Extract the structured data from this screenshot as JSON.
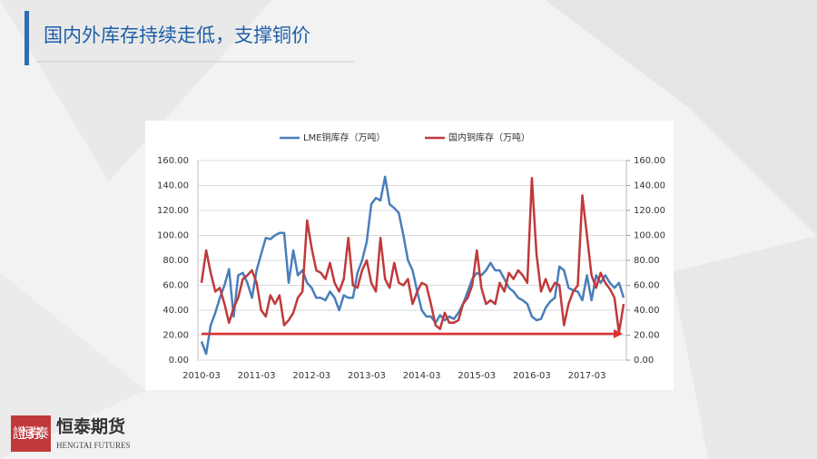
{
  "page_title": "国内外库存持续走低，支撑铜价",
  "logo": {
    "name": "恒泰期货",
    "english": "HENGTAI FUTURES",
    "seal": "證恒券泰"
  },
  "chart_data": {
    "type": "line",
    "categories": [
      "2010-03",
      null,
      null,
      null,
      null,
      null,
      null,
      null,
      null,
      null,
      null,
      null,
      "2011-03",
      null,
      null,
      null,
      null,
      null,
      null,
      null,
      null,
      null,
      null,
      null,
      "2012-03",
      null,
      null,
      null,
      null,
      null,
      null,
      null,
      null,
      null,
      null,
      null,
      "2013-03",
      null,
      null,
      null,
      null,
      null,
      null,
      null,
      null,
      null,
      null,
      null,
      "2014-03",
      null,
      null,
      null,
      null,
      null,
      null,
      null,
      null,
      null,
      null,
      null,
      "2015-03",
      null,
      null,
      null,
      null,
      null,
      null,
      null,
      null,
      null,
      null,
      null,
      "2016-03",
      null,
      null,
      null,
      null,
      null,
      null,
      null,
      null,
      null,
      null,
      null,
      "2017-03",
      null,
      null,
      null,
      null,
      null,
      null,
      null,
      null
    ],
    "series": [
      {
        "name": "LME铜库存（万吨）",
        "color": "#4a7ebb",
        "values": [
          15,
          5,
          28,
          38,
          50,
          60,
          73,
          35,
          68,
          70,
          62,
          50,
          72,
          85,
          98,
          97,
          100,
          102,
          102,
          62,
          88,
          68,
          72,
          62,
          58,
          50,
          50,
          48,
          55,
          50,
          40,
          52,
          50,
          50,
          70,
          80,
          95,
          125,
          130,
          128,
          147,
          125,
          122,
          118,
          100,
          80,
          72,
          55,
          40,
          35,
          35,
          30,
          36,
          32,
          35,
          33,
          38,
          45,
          55,
          65,
          70,
          68,
          72,
          78,
          72,
          72,
          65,
          58,
          55,
          50,
          48,
          45,
          35,
          32,
          33,
          42,
          47,
          50,
          75,
          72,
          58,
          56,
          55,
          48,
          68,
          48,
          68,
          62,
          68,
          62,
          58,
          62,
          50
        ]
      },
      {
        "name": "国内铜库存（万吨）",
        "color": "#c0393b",
        "values": [
          62,
          88,
          70,
          55,
          58,
          45,
          30,
          42,
          50,
          65,
          68,
          72,
          62,
          40,
          35,
          52,
          45,
          52,
          28,
          32,
          38,
          50,
          55,
          112,
          90,
          72,
          70,
          65,
          78,
          62,
          55,
          65,
          98,
          60,
          58,
          72,
          80,
          62,
          55,
          98,
          65,
          58,
          78,
          62,
          60,
          65,
          45,
          55,
          62,
          60,
          45,
          28,
          25,
          38,
          30,
          30,
          32,
          45,
          50,
          60,
          88,
          58,
          45,
          48,
          45,
          62,
          55,
          70,
          65,
          72,
          68,
          62,
          146,
          85,
          55,
          65,
          55,
          62,
          60,
          28,
          45,
          55,
          60,
          132,
          100,
          68,
          58,
          70,
          62,
          57,
          50,
          22,
          45
        ]
      }
    ],
    "ylim": [
      0,
      160
    ],
    "yticks": [
      {
        "value": 0,
        "label": "0.00"
      },
      {
        "value": 20,
        "label": "20.00"
      },
      {
        "value": 40,
        "label": "40.00"
      },
      {
        "value": 60,
        "label": "60.00"
      },
      {
        "value": 80,
        "label": "80.00"
      },
      {
        "value": 100,
        "label": "100.00"
      },
      {
        "value": 120,
        "label": "120.00"
      },
      {
        "value": 140,
        "label": "140.00"
      },
      {
        "value": 160,
        "label": "160.00"
      }
    ],
    "y2lim": [
      0,
      160
    ],
    "y2ticks": [
      {
        "value": 0,
        "label": "0.00"
      },
      {
        "value": 20,
        "label": "20.00"
      },
      {
        "value": 40,
        "label": "40.00"
      },
      {
        "value": 60,
        "label": "60.00"
      },
      {
        "value": 80,
        "label": "80.00"
      },
      {
        "value": 100,
        "label": "100.00"
      },
      {
        "value": 120,
        "label": "120.00"
      },
      {
        "value": 140,
        "label": "140.00"
      },
      {
        "value": 160,
        "label": "160.00"
      }
    ],
    "grid": true
  }
}
